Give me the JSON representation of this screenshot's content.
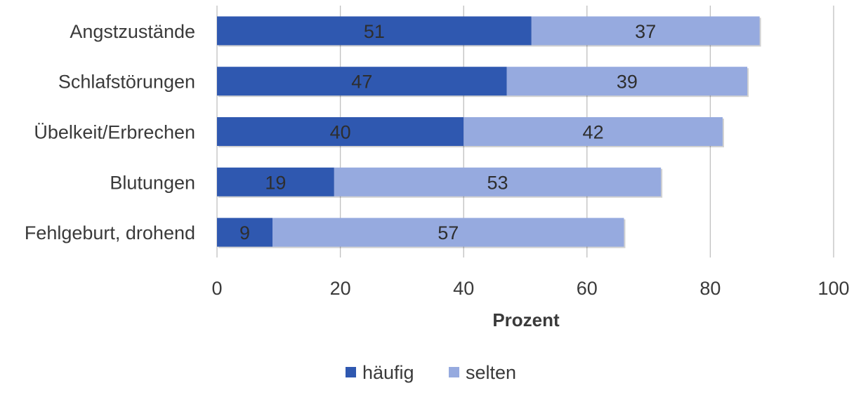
{
  "chart_data": {
    "type": "bar",
    "orientation": "horizontal",
    "stacked": true,
    "categories": [
      "Angstzustände",
      "Schlafstörungen",
      "Übelkeit/Erbrechen",
      "Blutungen",
      "Fehlgeburt, drohend"
    ],
    "series": [
      {
        "name": "häufig",
        "values": [
          51,
          47,
          40,
          19,
          9
        ],
        "color": "#2f58b0"
      },
      {
        "name": "selten",
        "values": [
          37,
          39,
          42,
          53,
          57
        ],
        "color": "#96aadf"
      }
    ],
    "xlabel": "Prozent",
    "xlim": [
      0,
      100
    ],
    "xticks": [
      0,
      20,
      40,
      60,
      80,
      100
    ],
    "grid": true,
    "data_labels": true,
    "legend": "bottom"
  }
}
